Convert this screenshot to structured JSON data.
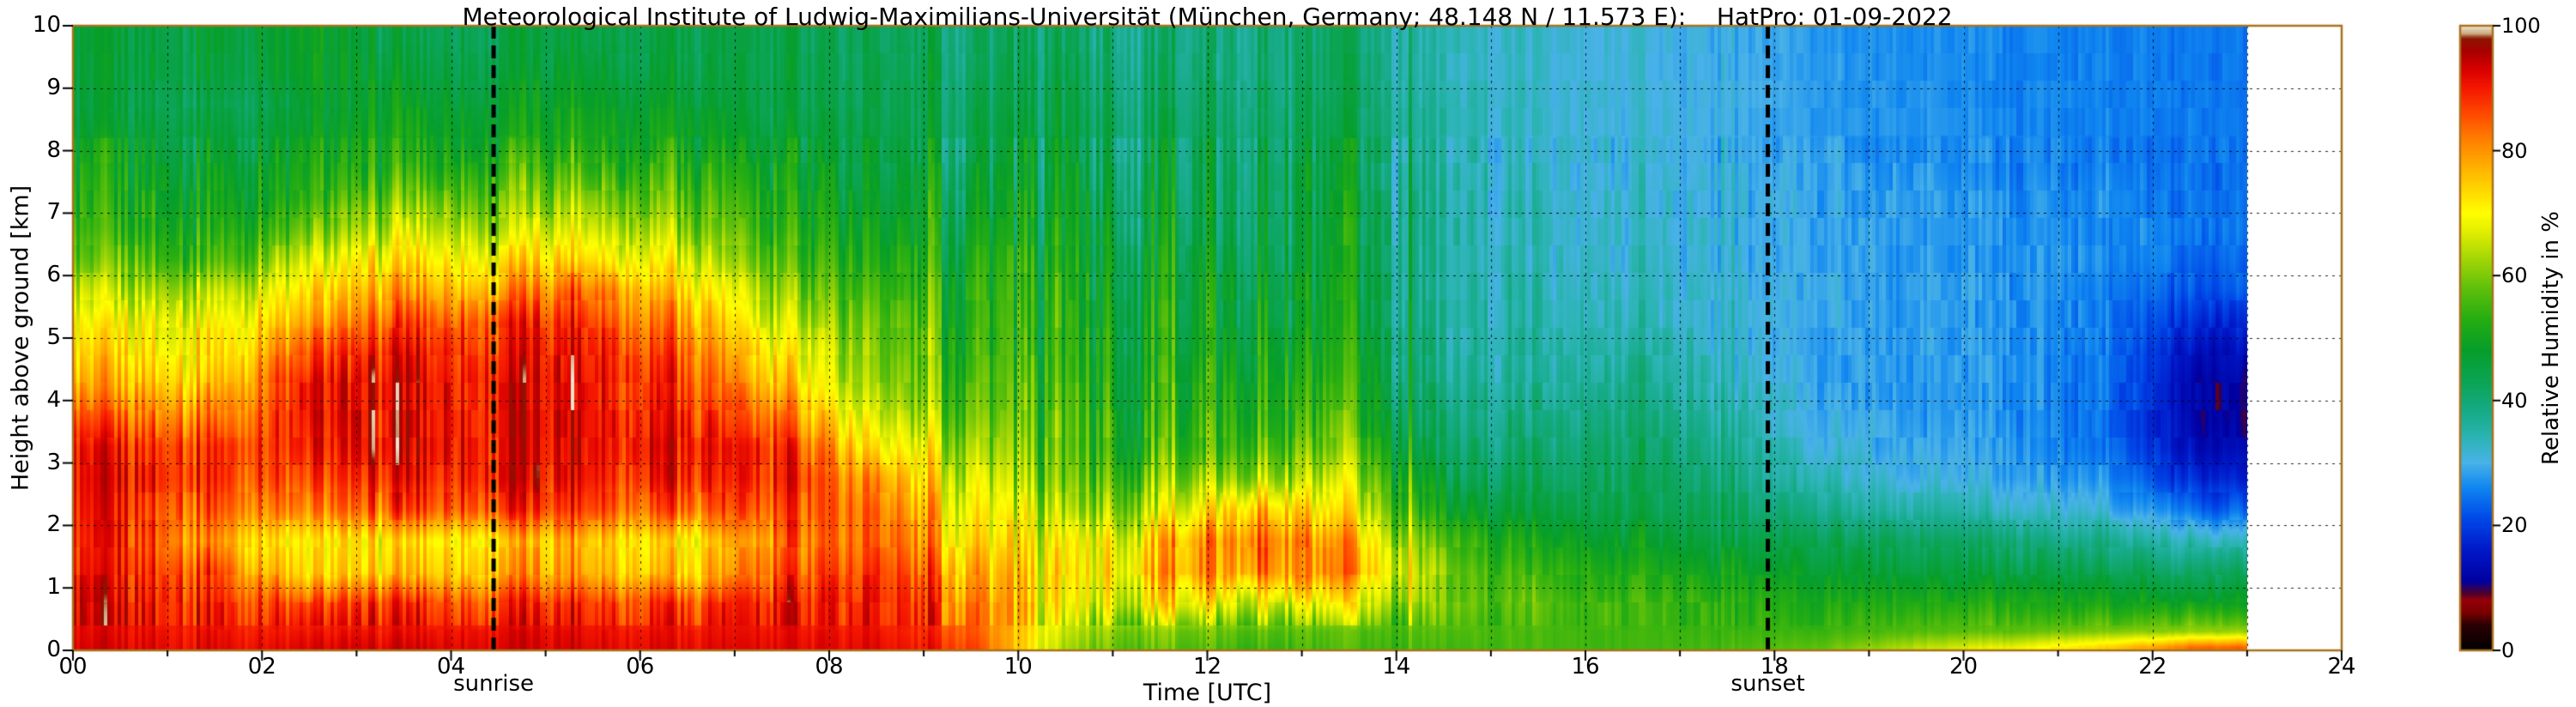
{
  "title": "Meteorological Institute of Ludwig-Maximilians-Universität (München, Germany; 48.148 N / 11.573 E):    HatPro: 01-09-2022",
  "axes": {
    "x": {
      "label": "Time [UTC]",
      "ticks": [
        "00",
        "02",
        "04",
        "06",
        "08",
        "10",
        "12",
        "14",
        "16",
        "18",
        "20",
        "22",
        "24"
      ],
      "tick_values": [
        0,
        2,
        4,
        6,
        8,
        10,
        12,
        14,
        16,
        18,
        20,
        22,
        24
      ],
      "range": [
        0,
        24
      ],
      "minor_step_hours": 1,
      "grid": "dashed every 1 h"
    },
    "y": {
      "label": "Height above ground [km]",
      "ticks": [
        "0",
        "1",
        "2",
        "3",
        "4",
        "5",
        "6",
        "7",
        "8",
        "9",
        "10"
      ],
      "tick_values": [
        0,
        1,
        2,
        3,
        4,
        5,
        6,
        7,
        8,
        9,
        10
      ],
      "range": [
        0,
        10
      ],
      "grid": "dashed every 1 km"
    }
  },
  "colorbar": {
    "label": "Relative Humidity in %",
    "ticks": [
      "0",
      "20",
      "40",
      "60",
      "80",
      "100"
    ],
    "tick_values": [
      0,
      20,
      40,
      60,
      80,
      100
    ],
    "range": [
      0,
      100
    ],
    "stops": [
      [
        0,
        "#000000"
      ],
      [
        4,
        "#2a0004"
      ],
      [
        6,
        "#7a0000"
      ],
      [
        8,
        "#96000a"
      ],
      [
        9,
        "#50002a"
      ],
      [
        11,
        "#0000a0"
      ],
      [
        16,
        "#0018c8"
      ],
      [
        21,
        "#0048e8"
      ],
      [
        26,
        "#0f86f0"
      ],
      [
        30,
        "#49b2e8"
      ],
      [
        34,
        "#2cb4b4"
      ],
      [
        38,
        "#17ab8a"
      ],
      [
        43,
        "#0ba455"
      ],
      [
        48,
        "#069e2a"
      ],
      [
        53,
        "#25ad12"
      ],
      [
        58,
        "#5fc00a"
      ],
      [
        63,
        "#a8d805"
      ],
      [
        67,
        "#e2ee00"
      ],
      [
        70,
        "#ffff00"
      ],
      [
        74,
        "#ffd400"
      ],
      [
        78,
        "#ffaa00"
      ],
      [
        82,
        "#ff7d00"
      ],
      [
        86,
        "#ff4800"
      ],
      [
        90,
        "#f51800"
      ],
      [
        93,
        "#d90000"
      ],
      [
        96,
        "#a80000"
      ],
      [
        98,
        "#8c1500"
      ],
      [
        98.8,
        "#c9a97e"
      ],
      [
        100,
        "#efe8d5"
      ]
    ]
  },
  "annotations": {
    "sunrise": {
      "label": "sunrise",
      "time": 4.45
    },
    "sunset": {
      "label": "sunset",
      "time": 17.93
    }
  },
  "chart_data": {
    "type": "heatmap",
    "title": "HatPro relative humidity time-height cross-section, 01-09-2022",
    "xlabel": "Time [UTC]",
    "ylabel": "Height above ground [km]",
    "value_label": "Relative Humidity in %",
    "time_range": [
      0,
      23
    ],
    "height_range": [
      0,
      10
    ],
    "x_unit": "hours UTC (hourly bin centers)",
    "y_unit": "km above ground (level centers)",
    "row_order": "bottom-to-top",
    "x": [
      0.5,
      1.5,
      2.5,
      3.5,
      4.5,
      5.5,
      6.5,
      7.5,
      8.5,
      9.5,
      10.5,
      11.5,
      12.5,
      13.5,
      14.5,
      15.5,
      16.5,
      17.5,
      18.5,
      19.5,
      20.5,
      21.5,
      22.5
    ],
    "y": [
      0.05,
      0.3,
      0.75,
      1.25,
      1.75,
      2.25,
      2.75,
      3.25,
      3.75,
      4.25,
      4.75,
      5.25,
      5.75,
      6.25,
      6.75,
      7.25,
      7.75,
      8.25,
      8.75,
      9.25,
      9.75
    ],
    "values": [
      [
        92,
        92,
        92,
        93,
        93,
        93,
        92,
        92,
        92,
        88,
        62,
        58,
        56,
        55,
        56,
        56,
        55,
        56,
        58,
        64,
        68,
        74,
        84
      ],
      [
        91,
        91,
        90,
        91,
        92,
        92,
        91,
        91,
        91,
        86,
        64,
        60,
        58,
        56,
        57,
        56,
        55,
        55,
        55,
        57,
        58,
        60,
        62
      ],
      [
        90,
        90,
        85,
        88,
        88,
        90,
        88,
        90,
        90,
        84,
        68,
        72,
        68,
        66,
        60,
        57,
        55,
        54,
        52,
        52,
        52,
        51,
        50
      ],
      [
        88,
        87,
        72,
        75,
        78,
        80,
        75,
        85,
        88,
        80,
        70,
        78,
        82,
        76,
        60,
        54,
        52,
        50,
        48,
        46,
        45,
        44,
        42
      ],
      [
        87,
        80,
        70,
        72,
        75,
        78,
        72,
        82,
        85,
        75,
        68,
        75,
        85,
        74,
        56,
        50,
        48,
        46,
        44,
        42,
        40,
        38,
        34
      ],
      [
        88,
        85,
        80,
        85,
        88,
        88,
        85,
        86,
        84,
        72,
        62,
        66,
        78,
        66,
        50,
        45,
        44,
        42,
        38,
        35,
        33,
        31,
        24
      ],
      [
        89,
        88,
        85,
        90,
        92,
        92,
        90,
        89,
        80,
        68,
        58,
        60,
        64,
        61,
        45,
        42,
        43,
        40,
        34,
        31,
        29,
        27,
        17
      ],
      [
        88,
        88,
        88,
        92,
        92,
        93,
        92,
        88,
        72,
        64,
        56,
        55,
        57,
        55,
        42,
        40,
        42,
        38,
        31,
        29,
        28,
        25,
        13
      ],
      [
        82,
        82,
        90,
        92,
        92,
        93,
        90,
        82,
        66,
        60,
        55,
        53,
        54,
        52,
        40,
        38,
        40,
        36,
        30,
        28,
        27,
        25,
        12
      ],
      [
        76,
        76,
        90,
        92,
        92,
        93,
        88,
        75,
        62,
        58,
        54,
        52,
        52,
        50,
        38,
        36,
        38,
        34,
        29,
        28,
        27,
        25,
        12
      ],
      [
        72,
        72,
        85,
        90,
        90,
        92,
        85,
        70,
        60,
        56,
        53,
        50,
        50,
        48,
        37,
        35,
        36,
        33,
        29,
        28,
        27,
        25,
        14
      ],
      [
        68,
        70,
        78,
        85,
        88,
        90,
        80,
        65,
        58,
        55,
        52,
        50,
        48,
        46,
        36,
        34,
        34,
        32,
        29,
        28,
        27,
        26,
        18
      ],
      [
        62,
        64,
        72,
        78,
        80,
        85,
        75,
        60,
        55,
        54,
        51,
        49,
        47,
        45,
        36,
        34,
        33,
        32,
        29,
        28,
        27,
        26,
        22
      ],
      [
        56,
        56,
        65,
        72,
        72,
        75,
        68,
        56,
        52,
        52,
        50,
        48,
        46,
        44,
        36,
        33,
        32,
        31,
        29,
        28,
        27,
        27,
        24
      ],
      [
        52,
        52,
        58,
        65,
        65,
        68,
        62,
        52,
        50,
        50,
        48,
        46,
        45,
        44,
        36,
        33,
        32,
        31,
        29,
        28,
        27,
        27,
        25
      ],
      [
        50,
        50,
        52,
        58,
        60,
        62,
        58,
        50,
        48,
        48,
        47,
        45,
        44,
        43,
        36,
        32,
        32,
        31,
        29,
        28,
        27,
        27,
        25
      ],
      [
        48,
        48,
        50,
        52,
        55,
        56,
        54,
        48,
        46,
        46,
        46,
        44,
        43,
        42,
        35,
        32,
        31,
        30,
        29,
        27,
        26,
        26,
        25
      ],
      [
        46,
        46,
        48,
        50,
        50,
        52,
        50,
        46,
        45,
        45,
        45,
        43,
        42,
        42,
        35,
        32,
        31,
        30,
        28,
        27,
        26,
        26,
        25
      ],
      [
        44,
        44,
        46,
        48,
        48,
        50,
        48,
        44,
        44,
        44,
        44,
        42,
        41,
        41,
        35,
        32,
        31,
        30,
        28,
        27,
        26,
        26,
        25
      ],
      [
        45,
        46,
        48,
        46,
        46,
        48,
        46,
        44,
        44,
        43,
        43,
        41,
        40,
        40,
        34,
        32,
        31,
        30,
        28,
        27,
        26,
        26,
        25
      ],
      [
        45,
        46,
        48,
        44,
        45,
        46,
        45,
        44,
        43,
        42,
        42,
        40,
        40,
        40,
        34,
        32,
        31,
        30,
        28,
        27,
        26,
        26,
        25
      ]
    ]
  }
}
